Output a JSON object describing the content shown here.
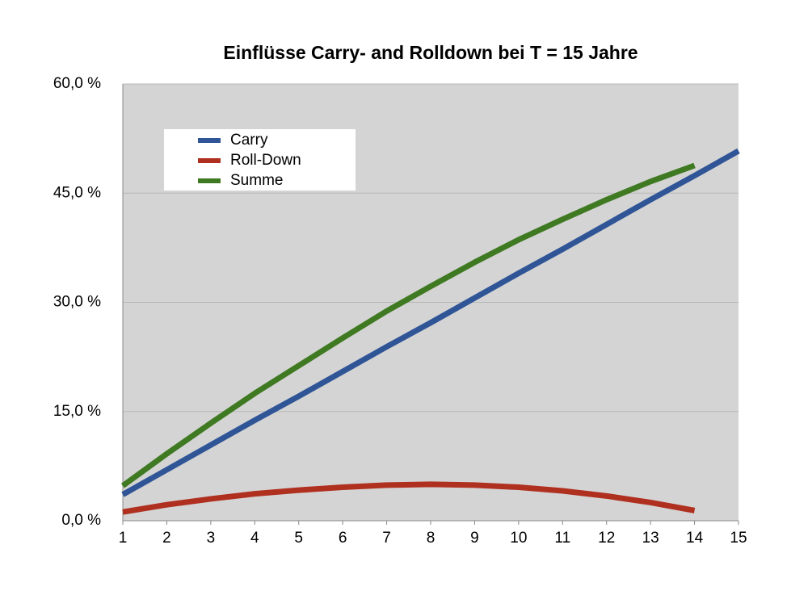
{
  "chart_data": {
    "type": "line",
    "title": "Einflüsse Carry- and Rolldown bei T = 15 Jahre",
    "x": [
      1,
      2,
      3,
      4,
      5,
      6,
      7,
      8,
      9,
      10,
      11,
      12,
      13,
      14,
      15
    ],
    "series": [
      {
        "name": "Carry",
        "color": "#2f5597",
        "values": [
          3.6,
          7.0,
          10.4,
          13.8,
          17.1,
          20.5,
          23.9,
          27.2,
          30.6,
          34.0,
          37.3,
          40.7,
          44.1,
          47.4,
          50.8
        ]
      },
      {
        "name": "Roll-Down",
        "color": "#b03020",
        "values": [
          1.2,
          2.2,
          3.0,
          3.7,
          4.2,
          4.6,
          4.9,
          5.0,
          4.9,
          4.6,
          4.1,
          3.4,
          2.5,
          1.4,
          null
        ]
      },
      {
        "name": "Summe",
        "color": "#3f7a22",
        "values": [
          4.8,
          9.2,
          13.4,
          17.5,
          21.3,
          25.1,
          28.8,
          32.2,
          35.5,
          38.6,
          41.4,
          44.1,
          46.6,
          48.8,
          null
        ]
      }
    ],
    "xlim": [
      1,
      15
    ],
    "xticks": [
      1,
      2,
      3,
      4,
      5,
      6,
      7,
      8,
      9,
      10,
      11,
      12,
      13,
      14,
      15
    ],
    "ylim": [
      0,
      60
    ],
    "yticks": [
      {
        "value": 0,
        "label": "0,0 %"
      },
      {
        "value": 15,
        "label": "15,0 %"
      },
      {
        "value": 30,
        "label": "30,0 %"
      },
      {
        "value": 45,
        "label": "45,0 %"
      },
      {
        "value": 60,
        "label": "60,0 %"
      }
    ],
    "grid": true,
    "legend": "upper left"
  }
}
